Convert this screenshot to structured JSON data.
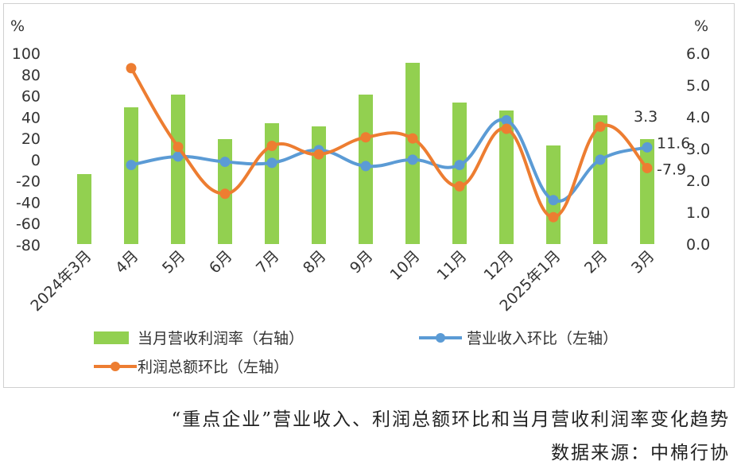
{
  "chart_data": {
    "type": "bar",
    "categories": [
      "2024年3月",
      "4月",
      "5月",
      "6月",
      "7月",
      "8月",
      "9月",
      "10月",
      "11月",
      "12月",
      "2025年1月",
      "2月",
      "3月"
    ],
    "left_axis": {
      "unit": "%",
      "ticks": [
        "100",
        "80",
        "60",
        "40",
        "20",
        "0",
        "-20",
        "-40",
        "-60",
        "-80"
      ],
      "ylim": [
        -80,
        100
      ]
    },
    "right_axis": {
      "unit": "%",
      "ticks": [
        "6.0",
        "5.0",
        "4.0",
        "3.0",
        "2.0",
        "1.0",
        "0.0"
      ],
      "ylim": [
        0,
        6
      ]
    },
    "series": [
      {
        "name": "当月营收利润率（右轴）",
        "kind": "bar",
        "axis": "right",
        "color": "#92d050",
        "values": [
          2.2,
          4.3,
          4.7,
          3.3,
          3.8,
          3.7,
          4.7,
          5.7,
          4.45,
          4.2,
          3.1,
          4.05,
          3.3
        ]
      },
      {
        "name": "营业收入环比（左轴）",
        "kind": "line",
        "axis": "left",
        "color": "#5b9bd5",
        "values": [
          null,
          -5,
          3,
          -2,
          -3,
          9,
          -6,
          0,
          -5,
          37,
          -38,
          0,
          11.6
        ]
      },
      {
        "name": "利润总额环比（左轴）",
        "kind": "line",
        "axis": "left",
        "color": "#ed7d31",
        "values": [
          null,
          86,
          12,
          -32,
          13,
          5,
          21,
          20,
          -25,
          29,
          -54,
          31,
          -7.9
        ]
      }
    ],
    "data_labels": [
      {
        "text": "3.3",
        "series": "当月营收利润率（右轴）",
        "category": "3月",
        "color": "#222222"
      },
      {
        "text": "11.6",
        "series": "营业收入环比（左轴）",
        "category": "3月",
        "color": "#222222"
      },
      {
        "text": "-7.9",
        "series": "利润总额环比（左轴）",
        "category": "3月",
        "color": "#e00000"
      }
    ],
    "negative_tick_color": "#e00000",
    "grid": false,
    "legend_position": "bottom"
  },
  "caption": "“重点企业”营业收入、利润总额环比和当月营收利润率变化趋势",
  "source": "数据来源：中棉行协"
}
